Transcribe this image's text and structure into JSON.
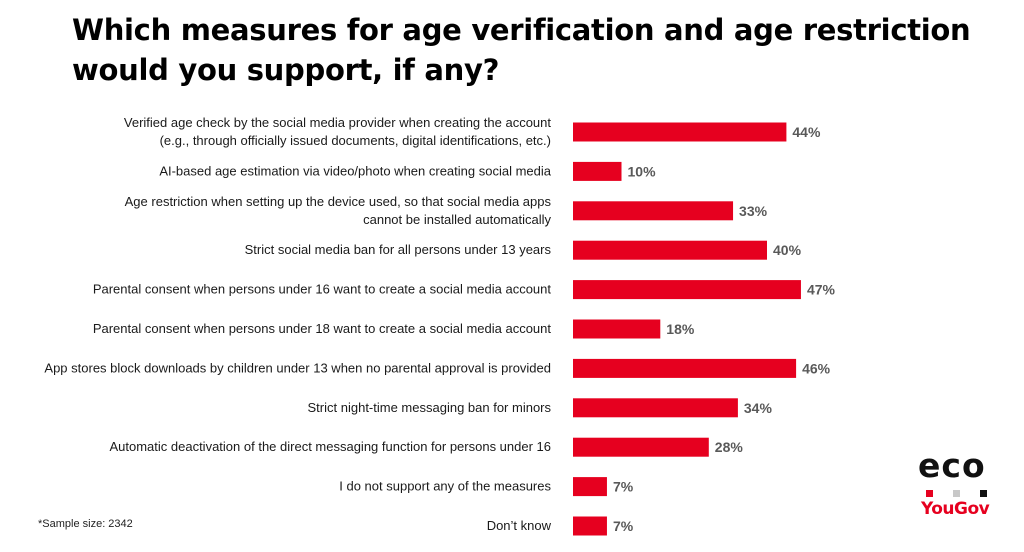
{
  "title": {
    "line1": "Which measures for age verification and age restriction",
    "line2": "would you support, if any?"
  },
  "chart_data": {
    "type": "bar",
    "orientation": "horizontal",
    "categories": [
      [
        "Verified age check by the social media provider when creating the account",
        "(e.g., through officially issued documents, digital identifications, etc.)"
      ],
      [
        "AI-based age estimation via video/photo when creating social media"
      ],
      [
        "Age restriction when setting up the device used, so that social media apps",
        "cannot be installed automatically"
      ],
      [
        "Strict social media ban for all persons under 13 years"
      ],
      [
        "Parental consent when persons under 16 want to create a social media account"
      ],
      [
        "Parental consent when persons under 18 want to create a social media account"
      ],
      [
        "App stores block downloads by children under 13 when no parental approval is provided"
      ],
      [
        "Strict night-time messaging ban for minors"
      ],
      [
        "Automatic deactivation of the direct messaging function for persons under 16"
      ],
      [
        "I do not support any of the measures"
      ],
      [
        "Don’t know"
      ]
    ],
    "values": [
      44,
      10,
      33,
      40,
      47,
      18,
      46,
      34,
      28,
      7,
      7
    ],
    "value_labels": [
      "44%",
      "10%",
      "33%",
      "40%",
      "47%",
      "18%",
      "46%",
      "34%",
      "28%",
      "7%",
      "7%"
    ],
    "bar_color": "#e6001f",
    "label_color": "#595959",
    "grid": false
  },
  "footnote": "*Sample size: 2342",
  "logo": {
    "eco_text": "eco",
    "yougov_text": "YouGov",
    "dot_colors": [
      "#e6001f",
      "#c8c8c8",
      "#111111"
    ]
  }
}
